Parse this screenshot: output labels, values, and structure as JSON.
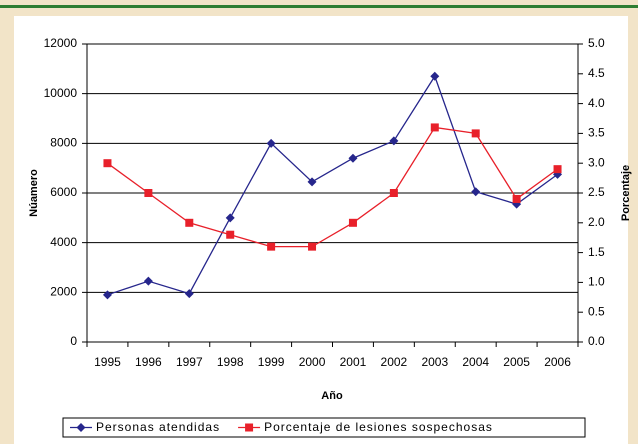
{
  "chart_data": {
    "type": "line",
    "categories": [
      "1995",
      "1996",
      "1997",
      "1998",
      "1999",
      "2000",
      "2001",
      "2002",
      "2003",
      "2004",
      "2005",
      "2006"
    ],
    "xlabel": "Año",
    "ylabel": "Núamero",
    "y2label": "Porcentaje",
    "ylim": [
      0,
      12000
    ],
    "yticks": [
      0,
      2000,
      4000,
      6000,
      8000,
      10000,
      12000
    ],
    "y2lim": [
      0,
      5
    ],
    "y2ticks": [
      {
        "value": 0,
        "label": "0.0"
      },
      {
        "value": 0.5,
        "label": "0.5"
      },
      {
        "value": 1,
        "label": "1.0"
      },
      {
        "value": 1.5,
        "label": "1.5"
      },
      {
        "value": 2,
        "label": "2.0"
      },
      {
        "value": 2.5,
        "label": "2.5"
      },
      {
        "value": 3,
        "label": "3.0"
      },
      {
        "value": 3.5,
        "label": "3.5"
      },
      {
        "value": 4,
        "label": "4.0"
      },
      {
        "value": 4.5,
        "label": "4.5"
      },
      {
        "value": 5,
        "label": "5.0"
      }
    ],
    "grid": true,
    "legend": "bottom",
    "series": [
      {
        "name": "Personas atendidas",
        "color": "#26268c",
        "marker": "diamond",
        "values": [
          1900,
          2450,
          1950,
          5000,
          8000,
          6450,
          7400,
          8100,
          10700,
          6050,
          5550,
          6750
        ]
      },
      {
        "name": "Porcentaje de lesiones sospechosas",
        "color": "#e8202a",
        "marker": "square",
        "axis": "y2",
        "values": [
          3.0,
          2.5,
          2.0,
          1.8,
          1.6,
          1.6,
          2.0,
          2.5,
          3.6,
          3.5,
          2.4,
          2.9
        ]
      }
    ]
  }
}
